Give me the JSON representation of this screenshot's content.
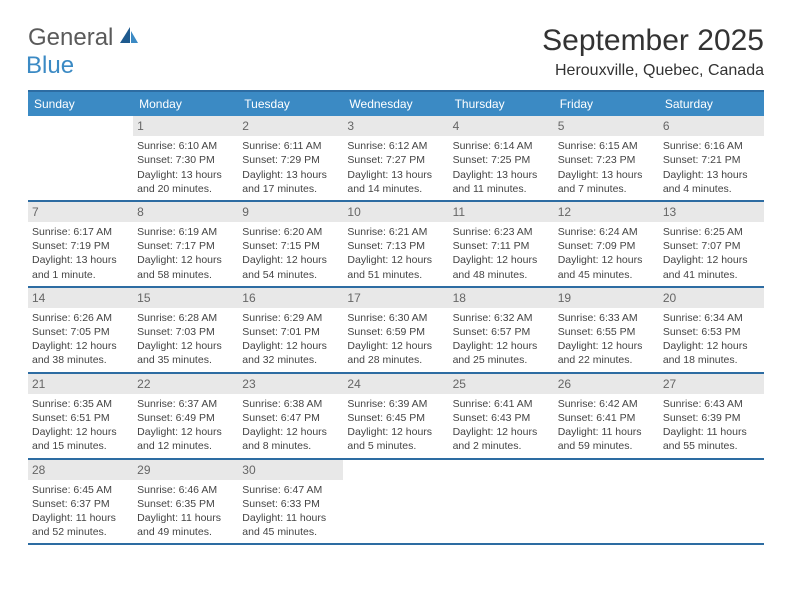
{
  "brand": {
    "part1": "General",
    "part2": "Blue"
  },
  "title": "September 2025",
  "location": "Herouxville, Quebec, Canada",
  "colors": {
    "header_bg": "#3b8ac4",
    "border": "#2d6ca2",
    "daynum_bg": "#e8e8e8",
    "text": "#444444",
    "logo_accent": "#3b8ac4",
    "logo_gray": "#5a5a5a"
  },
  "typography": {
    "title_fontsize": 30,
    "location_fontsize": 16,
    "header_fontsize": 12,
    "cell_fontsize": 10.5
  },
  "day_headers": [
    "Sunday",
    "Monday",
    "Tuesday",
    "Wednesday",
    "Thursday",
    "Friday",
    "Saturday"
  ],
  "weeks": [
    [
      {
        "num": "",
        "sunrise": "",
        "sunset": "",
        "daylight": ""
      },
      {
        "num": "1",
        "sunrise": "Sunrise: 6:10 AM",
        "sunset": "Sunset: 7:30 PM",
        "daylight": "Daylight: 13 hours and 20 minutes."
      },
      {
        "num": "2",
        "sunrise": "Sunrise: 6:11 AM",
        "sunset": "Sunset: 7:29 PM",
        "daylight": "Daylight: 13 hours and 17 minutes."
      },
      {
        "num": "3",
        "sunrise": "Sunrise: 6:12 AM",
        "sunset": "Sunset: 7:27 PM",
        "daylight": "Daylight: 13 hours and 14 minutes."
      },
      {
        "num": "4",
        "sunrise": "Sunrise: 6:14 AM",
        "sunset": "Sunset: 7:25 PM",
        "daylight": "Daylight: 13 hours and 11 minutes."
      },
      {
        "num": "5",
        "sunrise": "Sunrise: 6:15 AM",
        "sunset": "Sunset: 7:23 PM",
        "daylight": "Daylight: 13 hours and 7 minutes."
      },
      {
        "num": "6",
        "sunrise": "Sunrise: 6:16 AM",
        "sunset": "Sunset: 7:21 PM",
        "daylight": "Daylight: 13 hours and 4 minutes."
      }
    ],
    [
      {
        "num": "7",
        "sunrise": "Sunrise: 6:17 AM",
        "sunset": "Sunset: 7:19 PM",
        "daylight": "Daylight: 13 hours and 1 minute."
      },
      {
        "num": "8",
        "sunrise": "Sunrise: 6:19 AM",
        "sunset": "Sunset: 7:17 PM",
        "daylight": "Daylight: 12 hours and 58 minutes."
      },
      {
        "num": "9",
        "sunrise": "Sunrise: 6:20 AM",
        "sunset": "Sunset: 7:15 PM",
        "daylight": "Daylight: 12 hours and 54 minutes."
      },
      {
        "num": "10",
        "sunrise": "Sunrise: 6:21 AM",
        "sunset": "Sunset: 7:13 PM",
        "daylight": "Daylight: 12 hours and 51 minutes."
      },
      {
        "num": "11",
        "sunrise": "Sunrise: 6:23 AM",
        "sunset": "Sunset: 7:11 PM",
        "daylight": "Daylight: 12 hours and 48 minutes."
      },
      {
        "num": "12",
        "sunrise": "Sunrise: 6:24 AM",
        "sunset": "Sunset: 7:09 PM",
        "daylight": "Daylight: 12 hours and 45 minutes."
      },
      {
        "num": "13",
        "sunrise": "Sunrise: 6:25 AM",
        "sunset": "Sunset: 7:07 PM",
        "daylight": "Daylight: 12 hours and 41 minutes."
      }
    ],
    [
      {
        "num": "14",
        "sunrise": "Sunrise: 6:26 AM",
        "sunset": "Sunset: 7:05 PM",
        "daylight": "Daylight: 12 hours and 38 minutes."
      },
      {
        "num": "15",
        "sunrise": "Sunrise: 6:28 AM",
        "sunset": "Sunset: 7:03 PM",
        "daylight": "Daylight: 12 hours and 35 minutes."
      },
      {
        "num": "16",
        "sunrise": "Sunrise: 6:29 AM",
        "sunset": "Sunset: 7:01 PM",
        "daylight": "Daylight: 12 hours and 32 minutes."
      },
      {
        "num": "17",
        "sunrise": "Sunrise: 6:30 AM",
        "sunset": "Sunset: 6:59 PM",
        "daylight": "Daylight: 12 hours and 28 minutes."
      },
      {
        "num": "18",
        "sunrise": "Sunrise: 6:32 AM",
        "sunset": "Sunset: 6:57 PM",
        "daylight": "Daylight: 12 hours and 25 minutes."
      },
      {
        "num": "19",
        "sunrise": "Sunrise: 6:33 AM",
        "sunset": "Sunset: 6:55 PM",
        "daylight": "Daylight: 12 hours and 22 minutes."
      },
      {
        "num": "20",
        "sunrise": "Sunrise: 6:34 AM",
        "sunset": "Sunset: 6:53 PM",
        "daylight": "Daylight: 12 hours and 18 minutes."
      }
    ],
    [
      {
        "num": "21",
        "sunrise": "Sunrise: 6:35 AM",
        "sunset": "Sunset: 6:51 PM",
        "daylight": "Daylight: 12 hours and 15 minutes."
      },
      {
        "num": "22",
        "sunrise": "Sunrise: 6:37 AM",
        "sunset": "Sunset: 6:49 PM",
        "daylight": "Daylight: 12 hours and 12 minutes."
      },
      {
        "num": "23",
        "sunrise": "Sunrise: 6:38 AM",
        "sunset": "Sunset: 6:47 PM",
        "daylight": "Daylight: 12 hours and 8 minutes."
      },
      {
        "num": "24",
        "sunrise": "Sunrise: 6:39 AM",
        "sunset": "Sunset: 6:45 PM",
        "daylight": "Daylight: 12 hours and 5 minutes."
      },
      {
        "num": "25",
        "sunrise": "Sunrise: 6:41 AM",
        "sunset": "Sunset: 6:43 PM",
        "daylight": "Daylight: 12 hours and 2 minutes."
      },
      {
        "num": "26",
        "sunrise": "Sunrise: 6:42 AM",
        "sunset": "Sunset: 6:41 PM",
        "daylight": "Daylight: 11 hours and 59 minutes."
      },
      {
        "num": "27",
        "sunrise": "Sunrise: 6:43 AM",
        "sunset": "Sunset: 6:39 PM",
        "daylight": "Daylight: 11 hours and 55 minutes."
      }
    ],
    [
      {
        "num": "28",
        "sunrise": "Sunrise: 6:45 AM",
        "sunset": "Sunset: 6:37 PM",
        "daylight": "Daylight: 11 hours and 52 minutes."
      },
      {
        "num": "29",
        "sunrise": "Sunrise: 6:46 AM",
        "sunset": "Sunset: 6:35 PM",
        "daylight": "Daylight: 11 hours and 49 minutes."
      },
      {
        "num": "30",
        "sunrise": "Sunrise: 6:47 AM",
        "sunset": "Sunset: 6:33 PM",
        "daylight": "Daylight: 11 hours and 45 minutes."
      },
      {
        "num": "",
        "sunrise": "",
        "sunset": "",
        "daylight": ""
      },
      {
        "num": "",
        "sunrise": "",
        "sunset": "",
        "daylight": ""
      },
      {
        "num": "",
        "sunrise": "",
        "sunset": "",
        "daylight": ""
      },
      {
        "num": "",
        "sunrise": "",
        "sunset": "",
        "daylight": ""
      }
    ]
  ]
}
